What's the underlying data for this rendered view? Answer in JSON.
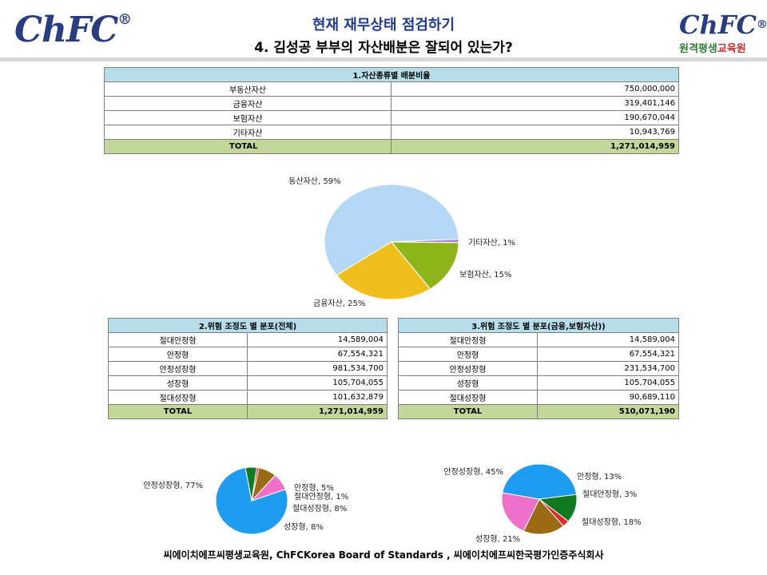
{
  "header": {
    "logo_left": "ChFC",
    "logo_right": "ChFC",
    "logo_right_tag_a": "원격평생",
    "logo_right_tag_b": "교육원",
    "reg_mark": "®",
    "title": "현재 재무상태 점검하기",
    "subtitle": "4. 김성공 부부의 자산배분은 잘되어 있는가?"
  },
  "table1": {
    "header": "1.자산종류별 배분비율",
    "rows": [
      {
        "label": "부동산자산",
        "value": "750,000,000"
      },
      {
        "label": "금융자산",
        "value": "319,401,146"
      },
      {
        "label": "보험자산",
        "value": "190,670,044"
      },
      {
        "label": "기타자산",
        "value": "10,943,769"
      }
    ],
    "total_label": "TOTAL",
    "total_value": "1,271,014,959"
  },
  "table2": {
    "header": "2.위험 조정도 별 분포(전체)",
    "rows": [
      {
        "label": "절대안정형",
        "value": "14,589,004"
      },
      {
        "label": "안정형",
        "value": "67,554,321"
      },
      {
        "label": "안정성장형",
        "value": "981,534,700"
      },
      {
        "label": "성장형",
        "value": "105,704,055"
      },
      {
        "label": "절대성장형",
        "value": "101,632,879"
      }
    ],
    "total_label": "TOTAL",
    "total_value": "1,271,014,959"
  },
  "table3": {
    "header": "3.위험 조정도 별 분포(금융,보험자산))",
    "rows": [
      {
        "label": "절대안정형",
        "value": "14,589,004"
      },
      {
        "label": "안정형",
        "value": "67,554,321"
      },
      {
        "label": "안정성장형",
        "value": "231,534,700"
      },
      {
        "label": "성장형",
        "value": "105,704,055"
      },
      {
        "label": "절대성장형",
        "value": "90,689,110"
      }
    ],
    "total_label": "TOTAL",
    "total_value": "510,071,190"
  },
  "chart_data": [
    {
      "type": "pie",
      "slices": [
        {
          "label": "부동산자산, 59%",
          "value": 59,
          "color": "#b3d7f5"
        },
        {
          "label": "기타자산, 1%",
          "value": 1,
          "color": "#a98bd6"
        },
        {
          "label": "보험자산, 15%",
          "value": 15,
          "color": "#8db51a"
        },
        {
          "label": "금융자산, 25%",
          "value": 25,
          "color": "#f0bf1d"
        }
      ]
    },
    {
      "type": "pie",
      "slices": [
        {
          "label": "안정성장형, 77%",
          "value": 77,
          "color": "#1e9cf0"
        },
        {
          "label": "안정형, 5%",
          "value": 5,
          "color": "#0f7a1f"
        },
        {
          "label": "절대안정형, 1%",
          "value": 1,
          "color": "#e0262c"
        },
        {
          "label": "절대성장형, 8%",
          "value": 8,
          "color": "#9a6a14"
        },
        {
          "label": "성장형, 8%",
          "value": 8,
          "color": "#ef70c9"
        }
      ]
    },
    {
      "type": "pie",
      "slices": [
        {
          "label": "안정성장형, 45%",
          "value": 45,
          "color": "#1e9cf0"
        },
        {
          "label": "안정형, 13%",
          "value": 13,
          "color": "#0f7a1f"
        },
        {
          "label": "절대안정형, 3%",
          "value": 3,
          "color": "#e0262c"
        },
        {
          "label": "절대성장형, 18%",
          "value": 18,
          "color": "#9a6a14"
        },
        {
          "label": "성장형, 21%",
          "value": 21,
          "color": "#ef70c9"
        }
      ]
    }
  ],
  "footer": "씨에이치에프씨평생교육원,  ChFCKorea  Board  of  Standards  ,  씨에이치에프씨한국평가인증주식회사"
}
